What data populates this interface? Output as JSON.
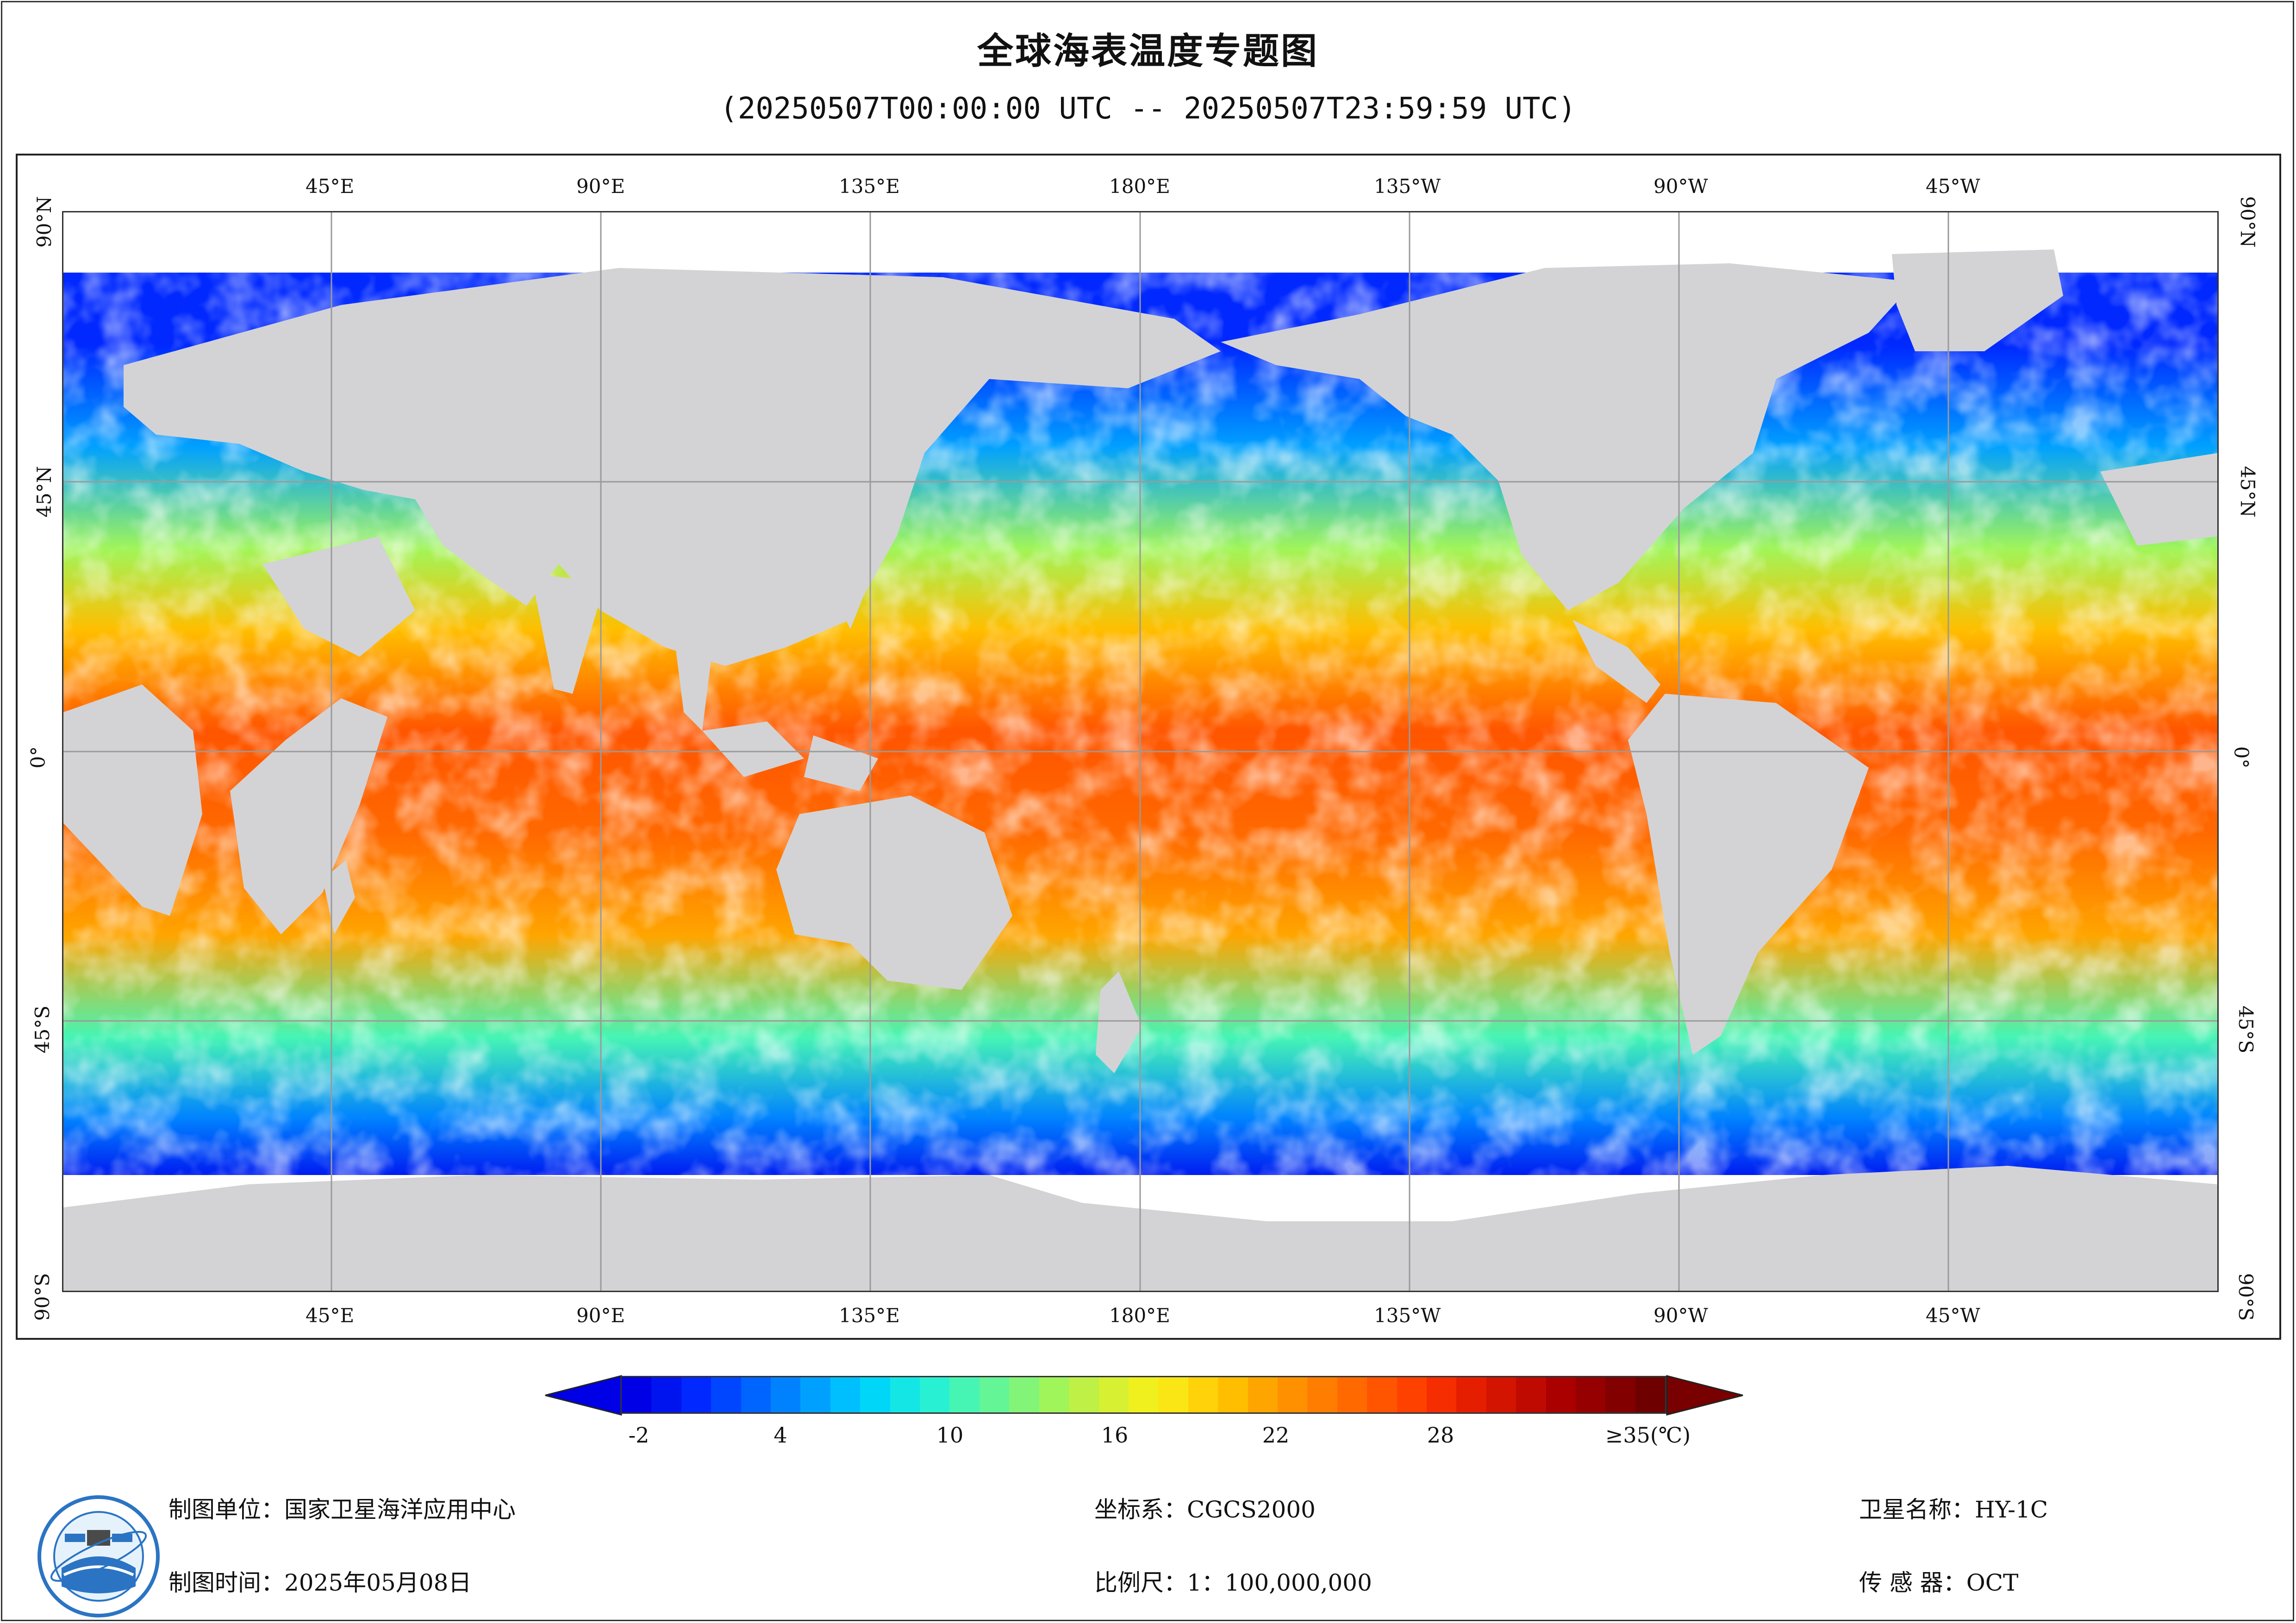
{
  "title": "全球海表温度专题图",
  "subtitle": "(20250507T00:00:00 UTC -- 20250507T23:59:59 UTC)",
  "map": {
    "lon_ticks": [
      "45°E",
      "90°E",
      "135°E",
      "180°E",
      "135°W",
      "90°W",
      "45°W"
    ],
    "lat_ticks": [
      "90°N",
      "45°N",
      "0°",
      "45°S",
      "90°S"
    ],
    "colors": {
      "land": "#d3d3d5",
      "cloud_nodata": "#ffffff",
      "grid": "#9a9a9a"
    }
  },
  "colorbar": {
    "labels": [
      "-2",
      "4",
      "10",
      "16",
      "22",
      "28",
      "≥35(℃)"
    ],
    "colors": [
      "#0000e6",
      "#0014f0",
      "#0028ff",
      "#0046ff",
      "#0064ff",
      "#0082ff",
      "#00a0ff",
      "#00bfff",
      "#00d7f8",
      "#14e6e6",
      "#28f0d2",
      "#46f5b4",
      "#64f596",
      "#82f578",
      "#a0f55a",
      "#bef046",
      "#d7f032",
      "#f0f01e",
      "#fae614",
      "#ffd20a",
      "#ffbe00",
      "#ffa500",
      "#ff9100",
      "#ff7d00",
      "#ff6900",
      "#ff5500",
      "#ff4100",
      "#f52d00",
      "#e61e00",
      "#d21400",
      "#be0a00",
      "#aa0000",
      "#960000",
      "#820000",
      "#6e0000"
    ],
    "arrow_low_color": "#0000e6",
    "arrow_high_color": "#780000"
  },
  "footer": {
    "org": "制图单位：国家卫星海洋应用中心",
    "date": "制图时间：2025年05月08日",
    "coord": "坐标系：CGCS2000",
    "scale": "比例尺：1：100,000,000",
    "satellite": "卫星名称：HY-1C",
    "sensor": "传 感 器：OCT"
  }
}
